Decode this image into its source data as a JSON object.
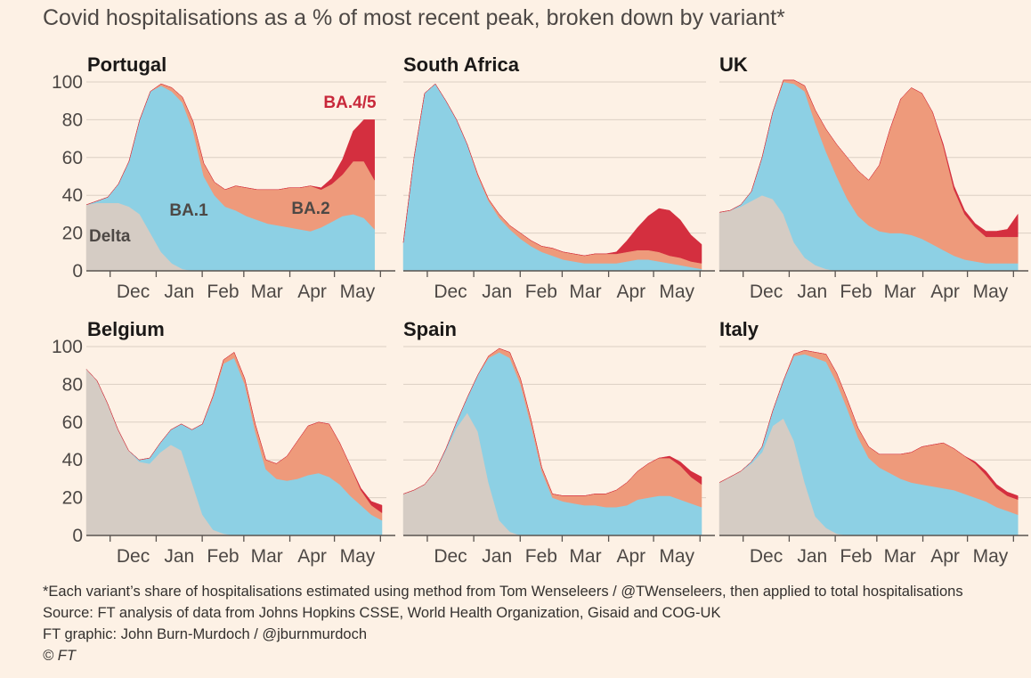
{
  "title": "Covid hospitalisations as a % of most recent peak, broken down by variant*",
  "colors": {
    "Delta": "#d5ccc4",
    "BA.1": "#8dd0e4",
    "BA.2": "#ee9a7b",
    "BA.4/5": "#d42f3f",
    "grid": "#dccfc3",
    "axis": "#5a5450"
  },
  "footer": {
    "note": "*Each variant’s share of hospitalisations estimated using method from Tom Wenseleers / @TWenseleers, then applied to total hospitalisations",
    "source": "Source: FT analysis of data from Johns Hopkins CSSE, World Health Organization, Gisaid and COG-UK",
    "graphic": "FT graphic: John Burn-Murdoch / @jburnmurdoch",
    "copyright": "© FT"
  },
  "chart_data": {
    "type": "area",
    "stacked": true,
    "x_unit": "week",
    "x_start": "2021-11-15",
    "x_end": "2022-06-05",
    "x_ticks": [
      "Dec",
      "Jan",
      "Feb",
      "Mar",
      "Apr",
      "May"
    ],
    "x_tick_dates": [
      "2021-12-01",
      "2022-01-01",
      "2022-02-01",
      "2022-03-01",
      "2022-04-01",
      "2022-05-01"
    ],
    "ylim": [
      0,
      100
    ],
    "y_ticks": [
      0,
      20,
      40,
      60,
      80,
      100
    ],
    "series_names": [
      "Delta",
      "BA.1",
      "BA.2",
      "BA.4/5"
    ],
    "panels": [
      {
        "name": "Portugal",
        "x_end": "2022-05-28",
        "annotations": [
          {
            "text": "Delta",
            "series": "Delta"
          },
          {
            "text": "BA.1",
            "series": "BA.1"
          },
          {
            "text": "BA.2",
            "series": "BA.2"
          },
          {
            "text": "BA.4/5",
            "series": "BA.4/5"
          }
        ],
        "series": [
          {
            "name": "Delta",
            "values": [
              35,
              36,
              36,
              36,
              34,
              30,
              20,
              10,
              4,
              1,
              0,
              0,
              0,
              0,
              0,
              0,
              0,
              0,
              0,
              0,
              0,
              0,
              0,
              0,
              0,
              0,
              0,
              0
            ]
          },
          {
            "name": "BA.1",
            "values": [
              0,
              1,
              3,
              10,
              24,
              50,
              75,
              88,
              91,
              88,
              74,
              50,
              40,
              34,
              32,
              29,
              27,
              25,
              24,
              23,
              22,
              21,
              23,
              26,
              29,
              30,
              28,
              22
            ]
          },
          {
            "name": "BA.2",
            "values": [
              0,
              0,
              0,
              0,
              0,
              0,
              0,
              1,
              2,
              3,
              5,
              7,
              7,
              9,
              13,
              15,
              16,
              18,
              19,
              21,
              22,
              24,
              20,
              20,
              22,
              28,
              30,
              26
            ]
          },
          {
            "name": "BA.4/5",
            "values": [
              0,
              0,
              0,
              0,
              0,
              0,
              0,
              0,
              0,
              0,
              0,
              0,
              0,
              0,
              0,
              0,
              0,
              0,
              0,
              0,
              0,
              0,
              1,
              3,
              8,
              16,
              22,
              32
            ]
          }
        ]
      },
      {
        "name": "South Africa",
        "x_end": "2022-06-02",
        "annotations": [],
        "series": [
          {
            "name": "Delta",
            "values": [
              0,
              0,
              0,
              0,
              0,
              0,
              0,
              0,
              0,
              0,
              0,
              0,
              0,
              0,
              0,
              0,
              0,
              0,
              0,
              0,
              0,
              0,
              0,
              0,
              0,
              0,
              0,
              0,
              0
            ]
          },
          {
            "name": "BA.1",
            "values": [
              15,
              60,
              94,
              99,
              90,
              80,
              67,
              50,
              37,
              28,
              22,
              17,
              13,
              10,
              8,
              6,
              5,
              4,
              4,
              4,
              4,
              5,
              6,
              6,
              5,
              4,
              3,
              2,
              1
            ]
          },
          {
            "name": "BA.2",
            "values": [
              0,
              0,
              0,
              0,
              0,
              0,
              0,
              1,
              1,
              2,
              2,
              3,
              3,
              3,
              4,
              4,
              4,
              4,
              5,
              5,
              5,
              5,
              5,
              5,
              5,
              4,
              4,
              3,
              3
            ]
          },
          {
            "name": "BA.4/5",
            "values": [
              0,
              0,
              0,
              0,
              0,
              0,
              0,
              0,
              0,
              0,
              0,
              0,
              0,
              0,
              0,
              0,
              0,
              0,
              0,
              0,
              1,
              6,
              12,
              18,
              23,
              24,
              20,
              14,
              10
            ]
          }
        ]
      },
      {
        "name": "UK",
        "x_end": "2022-06-04",
        "annotations": [],
        "series": [
          {
            "name": "Delta",
            "values": [
              31,
              32,
              34,
              37,
              40,
              38,
              30,
              15,
              7,
              3,
              1,
              0,
              0,
              0,
              0,
              0,
              0,
              0,
              0,
              0,
              0,
              0,
              0,
              0,
              0,
              0,
              0,
              0,
              0
            ]
          },
          {
            "name": "BA.1",
            "values": [
              0,
              0,
              1,
              5,
              20,
              46,
              70,
              84,
              88,
              75,
              62,
              50,
              38,
              29,
              24,
              21,
              20,
              20,
              19,
              17,
              14,
              11,
              8,
              6,
              5,
              4,
              4,
              4,
              4
            ]
          },
          {
            "name": "BA.2",
            "values": [
              0,
              0,
              0,
              0,
              0,
              0,
              1,
              2,
              3,
              7,
              12,
              17,
              22,
              24,
              24,
              35,
              55,
              71,
              78,
              77,
              70,
              55,
              35,
              24,
              18,
              14,
              14,
              14,
              14
            ]
          },
          {
            "name": "BA.4/5",
            "values": [
              0,
              0,
              0,
              0,
              0,
              0,
              0,
              0,
              0,
              0,
              0,
              0,
              0,
              0,
              0,
              0,
              0,
              0,
              0,
              0,
              0,
              1,
              2,
              2,
              2,
              3,
              3,
              4,
              12
            ]
          }
        ]
      },
      {
        "name": "Belgium",
        "x_end": "2022-06-02",
        "annotations": [],
        "series": [
          {
            "name": "Delta",
            "values": [
              88,
              82,
              70,
              56,
              45,
              39,
              38,
              44,
              48,
              45,
              28,
              11,
              3,
              1,
              0,
              0,
              0,
              0,
              0,
              0,
              0,
              0,
              0,
              0,
              0,
              0,
              0,
              0,
              0
            ]
          },
          {
            "name": "BA.1",
            "values": [
              0,
              0,
              0,
              0,
              0,
              1,
              3,
              5,
              8,
              14,
              28,
              48,
              70,
              90,
              94,
              80,
              55,
              35,
              30,
              29,
              30,
              32,
              33,
              31,
              27,
              21,
              16,
              11,
              8
            ]
          },
          {
            "name": "BA.2",
            "values": [
              0,
              0,
              0,
              0,
              0,
              0,
              0,
              0,
              0,
              0,
              0,
              0,
              1,
              2,
              3,
              3,
              4,
              5,
              8,
              13,
              20,
              26,
              27,
              28,
              22,
              16,
              8,
              5,
              4
            ]
          },
          {
            "name": "BA.4/5",
            "values": [
              0,
              0,
              0,
              0,
              0,
              0,
              0,
              0,
              0,
              0,
              0,
              0,
              0,
              0,
              0,
              0,
              0,
              0,
              0,
              0,
              0,
              0,
              0,
              0,
              0,
              0,
              1,
              2,
              4
            ]
          }
        ]
      },
      {
        "name": "Spain",
        "x_end": "2022-06-02",
        "annotations": [],
        "series": [
          {
            "name": "Delta",
            "values": [
              22,
              24,
              27,
              34,
              45,
              57,
              65,
              55,
              28,
              8,
              2,
              0,
              0,
              0,
              0,
              0,
              0,
              0,
              0,
              0,
              0,
              0,
              0,
              0,
              0,
              0,
              0,
              0,
              0
            ]
          },
          {
            "name": "BA.1",
            "values": [
              0,
              0,
              0,
              0,
              1,
              3,
              8,
              30,
              66,
              89,
              92,
              80,
              58,
              34,
              20,
              18,
              17,
              16,
              16,
              15,
              15,
              16,
              19,
              20,
              21,
              21,
              19,
              17,
              15
            ]
          },
          {
            "name": "BA.2",
            "values": [
              0,
              0,
              0,
              0,
              0,
              0,
              0,
              0,
              1,
              2,
              3,
              3,
              3,
              2,
              2,
              3,
              4,
              5,
              6,
              7,
              9,
              12,
              15,
              18,
              20,
              20,
              18,
              14,
              12
            ]
          },
          {
            "name": "BA.4/5",
            "values": [
              0,
              0,
              0,
              0,
              0,
              0,
              0,
              0,
              0,
              0,
              0,
              0,
              0,
              0,
              0,
              0,
              0,
              0,
              0,
              0,
              0,
              0,
              0,
              0,
              0,
              1,
              2,
              3,
              4
            ]
          }
        ]
      },
      {
        "name": "Italy",
        "x_end": "2022-06-04",
        "annotations": [],
        "series": [
          {
            "name": "Delta",
            "values": [
              28,
              31,
              34,
              38,
              44,
              58,
              62,
              50,
              28,
              10,
              4,
              1,
              0,
              0,
              0,
              0,
              0,
              0,
              0,
              0,
              0,
              0,
              0,
              0,
              0,
              0,
              0,
              0,
              0
            ]
          },
          {
            "name": "BA.1",
            "values": [
              0,
              0,
              0,
              1,
              3,
              8,
              20,
              45,
              68,
              84,
              88,
              80,
              67,
              52,
              41,
              36,
              33,
              30,
              28,
              27,
              26,
              25,
              24,
              22,
              20,
              18,
              15,
              13,
              11
            ]
          },
          {
            "name": "BA.2",
            "values": [
              0,
              0,
              0,
              0,
              0,
              0,
              0,
              1,
              2,
              3,
              4,
              5,
              5,
              5,
              6,
              7,
              10,
              13,
              16,
              20,
              22,
              24,
              22,
              20,
              18,
              14,
              10,
              8,
              8
            ]
          },
          {
            "name": "BA.4/5",
            "values": [
              0,
              0,
              0,
              0,
              0,
              0,
              0,
              0,
              0,
              0,
              0,
              0,
              0,
              0,
              0,
              0,
              0,
              0,
              0,
              0,
              0,
              0,
              0,
              0,
              1,
              2,
              2,
              2,
              2
            ]
          }
        ]
      }
    ]
  }
}
